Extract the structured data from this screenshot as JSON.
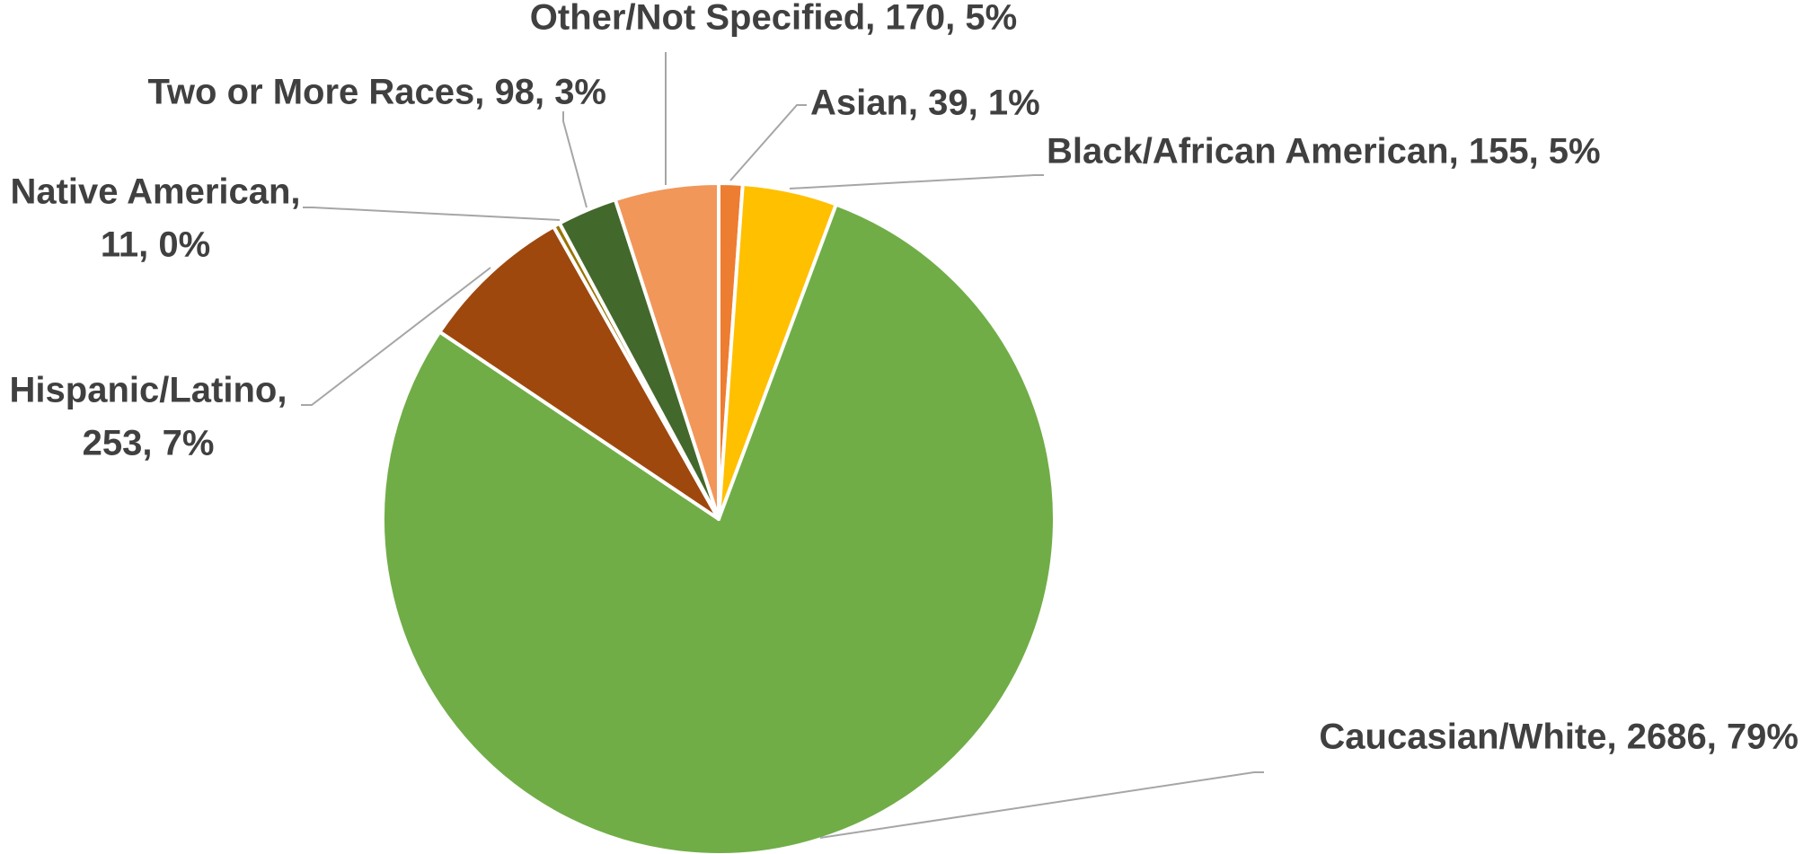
{
  "chart_data": {
    "type": "pie",
    "title": "",
    "legend": "none",
    "slices": [
      {
        "category": "Asian",
        "value": 39,
        "percent": "1%",
        "color": "#ed7d31"
      },
      {
        "category": "Black/African American",
        "value": 155,
        "percent": "5%",
        "color": "#ffc000"
      },
      {
        "category": "Caucasian/White",
        "value": 2686,
        "percent": "79%",
        "color": "#70ad47"
      },
      {
        "category": "Hispanic/Latino",
        "value": 253,
        "percent": "7%",
        "color": "#9e480e"
      },
      {
        "category": "Native American",
        "value": 11,
        "percent": "0%",
        "color": "#997300"
      },
      {
        "category": "Two or More Races",
        "value": 98,
        "percent": "3%",
        "color": "#43682b"
      },
      {
        "category": "Other/Not Specified",
        "value": 170,
        "percent": "5%",
        "color": "#f1975a"
      }
    ],
    "labels": {
      "asian": "Asian, 39, 1%",
      "black": "Black/African American, 155, 5%",
      "white": "Caucasian/White, 2686, 79%",
      "hispanic_1": "Hispanic/Latino,",
      "hispanic_2": "253, 7%",
      "native_1": "Native American,",
      "native_2": "11, 0%",
      "two_more": "Two or More Races, 98, 3%",
      "other": "Other/Not Specified, 170, 5%"
    }
  }
}
